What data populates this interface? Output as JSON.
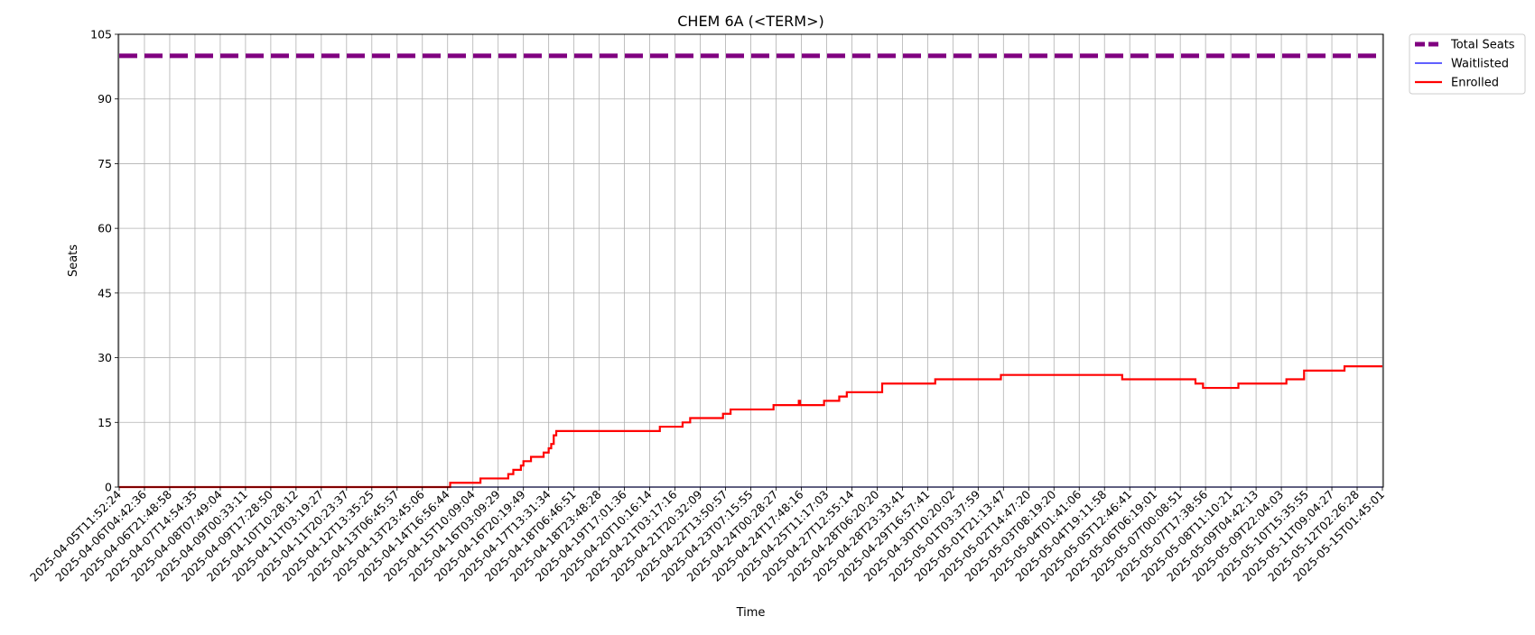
{
  "chart_data": {
    "type": "line",
    "title": "CHEM 6A (<TERM>)",
    "xlabel": "Time",
    "ylabel": "Seats",
    "ylim": [
      0,
      105
    ],
    "yticks": [
      0,
      15,
      30,
      45,
      60,
      75,
      90,
      105
    ],
    "grid": true,
    "legend_position": "outside-top-right",
    "x_tick_labels": [
      "2025-04-05T11:52:24",
      "2025-04-06T04:42:36",
      "2025-04-06T21:48:58",
      "2025-04-07T14:54:35",
      "2025-04-08T07:49:04",
      "2025-04-09T00:33:11",
      "2025-04-09T17:28:50",
      "2025-04-10T10:28:12",
      "2025-04-11T03:19:27",
      "2025-04-11T20:23:37",
      "2025-04-12T13:35:25",
      "2025-04-13T06:45:57",
      "2025-04-13T23:45:06",
      "2025-04-14T16:56:44",
      "2025-04-15T10:09:04",
      "2025-04-16T03:09:29",
      "2025-04-16T20:19:49",
      "2025-04-17T13:31:34",
      "2025-04-18T06:46:51",
      "2025-04-18T23:48:28",
      "2025-04-19T17:01:36",
      "2025-04-20T10:16:14",
      "2025-04-21T03:17:16",
      "2025-04-21T20:32:09",
      "2025-04-22T13:50:57",
      "2025-04-23T07:15:55",
      "2025-04-24T00:28:27",
      "2025-04-24T17:48:16",
      "2025-04-25T11:17:03",
      "2025-04-27T12:55:14",
      "2025-04-28T06:20:20",
      "2025-04-28T23:33:41",
      "2025-04-29T16:57:41",
      "2025-04-30T10:20:02",
      "2025-05-01T03:37:59",
      "2025-05-01T21:13:47",
      "2025-05-02T14:47:20",
      "2025-05-03T08:19:20",
      "2025-05-04T01:41:06",
      "2025-05-04T19:11:58",
      "2025-05-05T12:46:41",
      "2025-05-06T06:19:01",
      "2025-05-07T00:08:51",
      "2025-05-07T17:38:56",
      "2025-05-08T11:10:21",
      "2025-05-09T04:42:13",
      "2025-05-09T22:04:03",
      "2025-05-10T15:35:55",
      "2025-05-11T09:04:27",
      "2025-05-12T02:26:28",
      "2025-05-15T01:45:01"
    ],
    "series": [
      {
        "name": "Total Seats",
        "color": "#800080",
        "style": "dashed",
        "points": [
          [
            0,
            100
          ],
          [
            50,
            100
          ]
        ]
      },
      {
        "name": "Waitlisted",
        "color": "#0000ff",
        "style": "solid",
        "points": [
          [
            0,
            0
          ],
          [
            50,
            0
          ]
        ]
      },
      {
        "name": "Enrolled",
        "color": "#ff0000",
        "style": "step",
        "points": [
          [
            0,
            0
          ],
          [
            13.1,
            0
          ],
          [
            13.1,
            1
          ],
          [
            14.3,
            1
          ],
          [
            14.3,
            2
          ],
          [
            15.4,
            2
          ],
          [
            15.4,
            3
          ],
          [
            15.6,
            3
          ],
          [
            15.6,
            4
          ],
          [
            15.9,
            4
          ],
          [
            15.9,
            5
          ],
          [
            16.0,
            5
          ],
          [
            16.0,
            6
          ],
          [
            16.3,
            6
          ],
          [
            16.3,
            7
          ],
          [
            16.8,
            7
          ],
          [
            16.8,
            8
          ],
          [
            17.0,
            8
          ],
          [
            17.0,
            9
          ],
          [
            17.1,
            9
          ],
          [
            17.1,
            10
          ],
          [
            17.2,
            10
          ],
          [
            17.2,
            12
          ],
          [
            17.3,
            12
          ],
          [
            17.3,
            13
          ],
          [
            21.4,
            13
          ],
          [
            21.4,
            14
          ],
          [
            22.3,
            14
          ],
          [
            22.3,
            15
          ],
          [
            22.6,
            15
          ],
          [
            22.6,
            16
          ],
          [
            23.9,
            16
          ],
          [
            23.9,
            17
          ],
          [
            24.2,
            17
          ],
          [
            24.2,
            18
          ],
          [
            25.9,
            18
          ],
          [
            25.9,
            19
          ],
          [
            26.9,
            19
          ],
          [
            26.9,
            20
          ],
          [
            26.95,
            20
          ],
          [
            26.95,
            19
          ],
          [
            27.9,
            19
          ],
          [
            27.9,
            20
          ],
          [
            28.5,
            20
          ],
          [
            28.5,
            21
          ],
          [
            28.8,
            21
          ],
          [
            28.8,
            22
          ],
          [
            30.2,
            22
          ],
          [
            30.2,
            24
          ],
          [
            32.3,
            24
          ],
          [
            32.3,
            25
          ],
          [
            34.9,
            25
          ],
          [
            34.9,
            26
          ],
          [
            39.7,
            26
          ],
          [
            39.7,
            25
          ],
          [
            42.6,
            25
          ],
          [
            42.6,
            24
          ],
          [
            42.9,
            24
          ],
          [
            42.9,
            23
          ],
          [
            44.3,
            23
          ],
          [
            44.3,
            24
          ],
          [
            46.2,
            24
          ],
          [
            46.2,
            25
          ],
          [
            46.9,
            25
          ],
          [
            46.9,
            27
          ],
          [
            48.5,
            27
          ],
          [
            48.5,
            28
          ],
          [
            50,
            28
          ]
        ]
      }
    ]
  }
}
